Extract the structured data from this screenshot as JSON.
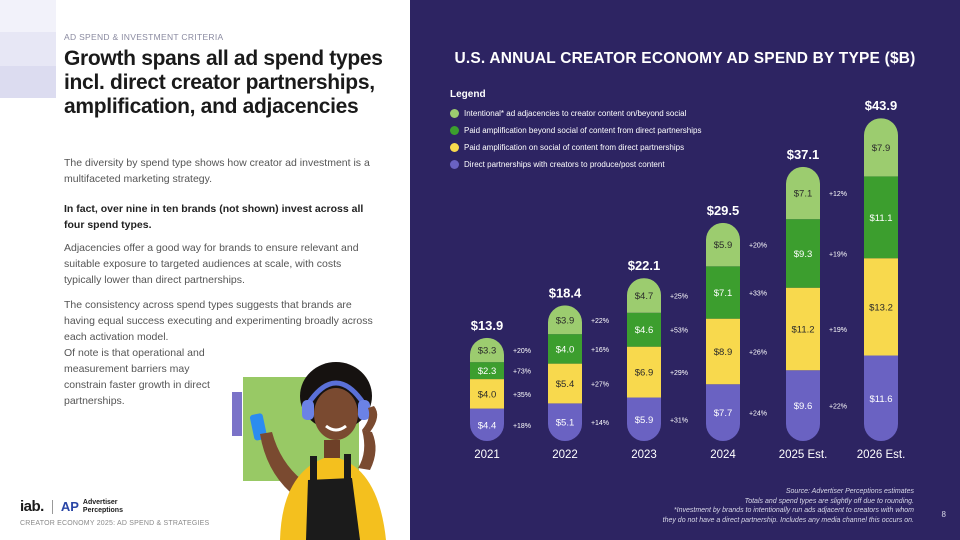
{
  "left": {
    "kicker": "AD SPEND & INVESTMENT CRITERIA",
    "heading": "Growth spans all ad spend types incl. direct creator partnerships, amplification, and adjacencies",
    "paragraphs": [
      "The diversity by spend type shows how creator ad investment is a multifaceted marketing strategy.",
      "In fact, over nine in ten brands (not shown) invest across all four spend types.",
      "Adjacencies offer a good way for brands to ensure relevant and suitable exposure to targeted audiences at scale, with costs typically lower than direct partnerships.",
      "The consistency across spend types suggests that brands are having equal success executing and experimenting broadly across each activation model.",
      "Of note is that operational and measurement barriers may constrain faster growth in direct partnerships."
    ],
    "logo_iab": "iab.",
    "logo_ap_mark": "AP",
    "logo_ap_name_line1": "Advertiser",
    "logo_ap_name_line2": "Perceptions",
    "footer": "CREATOR ECONOMY 2025: AD SPEND & STRATEGIES"
  },
  "right": {
    "footer_lines": [
      "Source: Advertiser Perceptions estimates",
      "Totals and spend types are slightly off due to rounding.",
      "*Investment by brands to intentionally run ads adjacent to creators with whom",
      "they do not have a direct partnership. Includes any media channel this occurs on."
    ],
    "page_number": "8"
  },
  "colors": {
    "background": "#2d2462",
    "adjacency": "#9ccc6f",
    "paid_beyond": "#3c9e2e",
    "paid_social": "#f8d94d",
    "direct": "#6a62c2"
  },
  "chart_data": {
    "type": "bar",
    "stacked": true,
    "title": "U.S. ANNUAL CREATOR ECONOMY AD SPEND BY TYPE ($B)",
    "legend_title": "Legend",
    "legend_position": "top-left",
    "categories": [
      "2021",
      "2022",
      "2023",
      "2024",
      "2025 Est.",
      "2026 Est."
    ],
    "totals": [
      "$13.9",
      "$18.4",
      "$22.1",
      "$29.5",
      "$37.1",
      "$43.9"
    ],
    "total_values": [
      13.9,
      18.4,
      22.1,
      29.5,
      37.1,
      43.9
    ],
    "series": [
      {
        "name": "Direct partnerships with creators to produce/post content",
        "color": "#6a62c2",
        "values": [
          4.4,
          5.1,
          5.9,
          7.7,
          9.6,
          11.6
        ],
        "labels": [
          "$4.4",
          "$5.1",
          "$5.9",
          "$7.7",
          "$9.6",
          "$11.6"
        ],
        "growth": [
          "+18%",
          "+14%",
          "+31%",
          "+24%",
          "+22%"
        ]
      },
      {
        "name": "Paid amplification on social of content from direct partnerships",
        "color": "#f8d94d",
        "values": [
          4.0,
          5.4,
          6.9,
          8.9,
          11.2,
          13.2
        ],
        "labels": [
          "$4.0",
          "$5.4",
          "$6.9",
          "$8.9",
          "$11.2",
          "$13.2"
        ],
        "growth": [
          "+35%",
          "+27%",
          "+29%",
          "+26%",
          "+19%"
        ]
      },
      {
        "name": "Paid amplification beyond social of content from direct partnerships",
        "color": "#3c9e2e",
        "values": [
          2.3,
          4.0,
          4.6,
          7.1,
          9.3,
          11.1
        ],
        "labels": [
          "$2.3",
          "$4.0",
          "$4.6",
          "$7.1",
          "$9.3",
          "$11.1"
        ],
        "growth": [
          "+73%",
          "+16%",
          "+53%",
          "+33%",
          "+19%"
        ]
      },
      {
        "name": "Intentional* ad adjacencies to creator content on/beyond social",
        "color": "#9ccc6f",
        "values": [
          3.3,
          3.9,
          4.7,
          5.9,
          7.1,
          7.9
        ],
        "labels": [
          "$3.3",
          "$3.9",
          "$4.7",
          "$5.9",
          "$7.1",
          "$7.9"
        ],
        "growth": [
          "+20%",
          "+22%",
          "+25%",
          "+20%",
          "+12%"
        ]
      }
    ],
    "legend_order": [
      3,
      2,
      1,
      0
    ],
    "ylim": [
      0,
      45
    ]
  }
}
